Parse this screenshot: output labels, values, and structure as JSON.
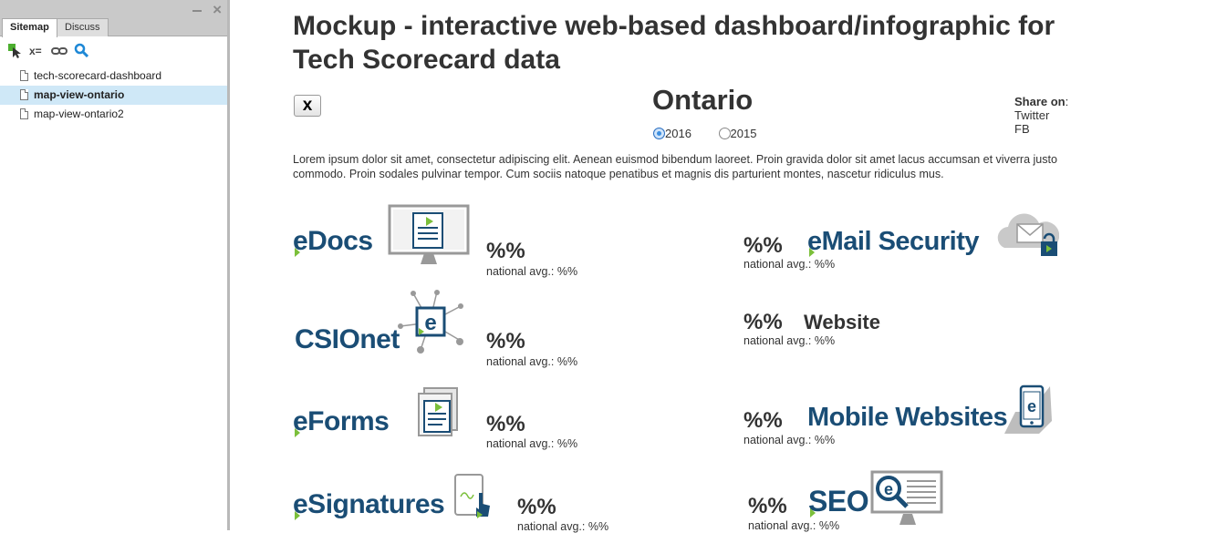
{
  "sidebar": {
    "tabs": [
      {
        "label": "Sitemap"
      },
      {
        "label": "Discuss"
      }
    ],
    "toolbar": {
      "filter_label": "x="
    },
    "items": [
      {
        "label": "tech-scorecard-dashboard"
      },
      {
        "label": "map-view-ontario"
      },
      {
        "label": "map-view-ontario2"
      }
    ],
    "selected_index": 1
  },
  "page": {
    "title": "Mockup - interactive web-based dashboard/infographic for Tech Scorecard data",
    "close_label": "x",
    "region": "Ontario",
    "years": [
      {
        "label": "2016",
        "selected": true
      },
      {
        "label": "2015",
        "selected": false
      }
    ],
    "share": {
      "heading": "Share on",
      "colon": ":",
      "links": [
        "Twitter",
        "FB"
      ]
    },
    "description": "Lorem ipsum dolor sit amet, consectetur adipiscing elit. Aenean euismod bibendum laoreet. Proin gravida dolor sit amet lacus accumsan et viverra justo commodo. Proin sodales pulvinar tempor. Cum sociis natoque penatibus et magnis dis parturient montes, nascetur ridiculus mus."
  },
  "metrics": {
    "edocs": {
      "name": "eDocs",
      "value": "%%",
      "avg": "national avg.: %%"
    },
    "csionet": {
      "name": "CSIOnet",
      "value": "%%",
      "avg": "national avg.: %%"
    },
    "eforms": {
      "name": "eForms",
      "value": "%%",
      "avg": "national avg.: %%"
    },
    "esignatures": {
      "name": "eSignatures",
      "value": "%%",
      "avg": "national avg.: %%"
    },
    "email_security": {
      "name": "eMail Security",
      "value": "%%",
      "avg": "national avg.: %%"
    },
    "website": {
      "name": "Website",
      "value": "%%",
      "avg": "national avg.: %%"
    },
    "mobile_websites": {
      "name": "Mobile Websites",
      "value": "%%",
      "avg": "national avg.: %%"
    },
    "seo": {
      "name": "SEO",
      "value": "%%",
      "avg": "national avg.: %%"
    }
  },
  "colors": {
    "brand_blue": "#1a4d75",
    "accent_green": "#7bbf3a",
    "selection": "#cfe8f7"
  }
}
